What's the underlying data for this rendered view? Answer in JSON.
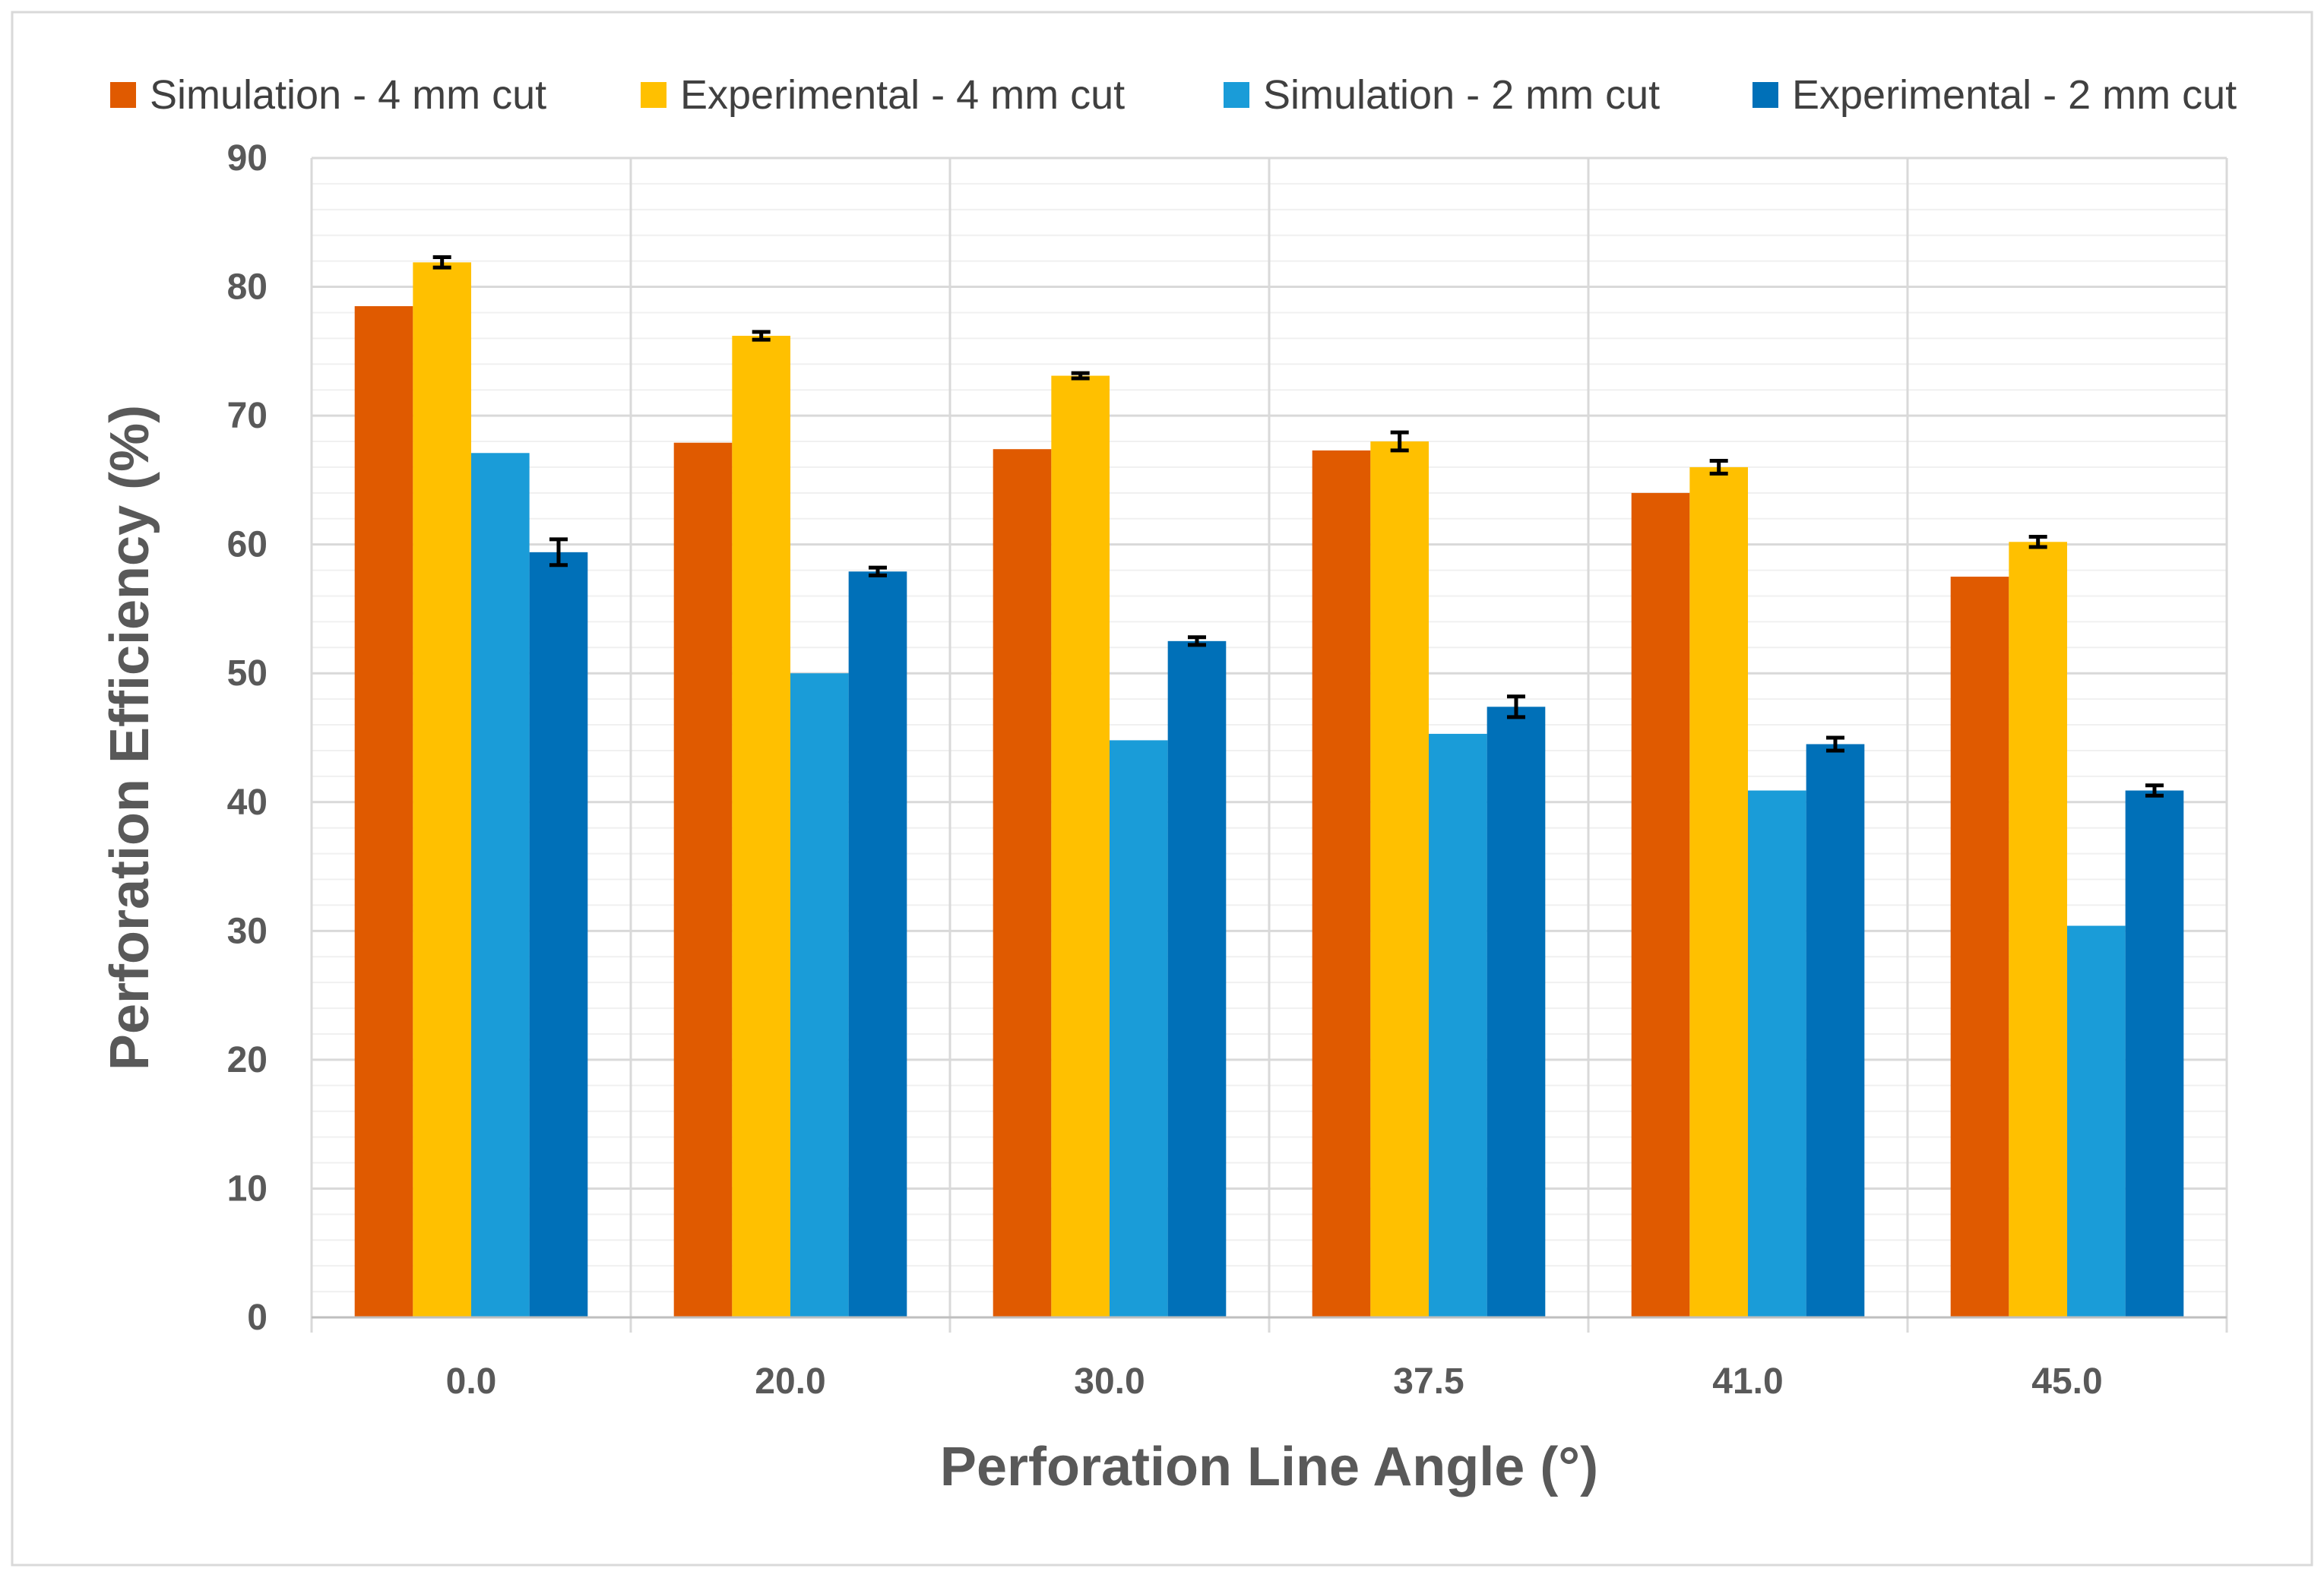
{
  "chart_data": {
    "type": "bar",
    "title": "",
    "xlabel": "Perforation Line Angle (°)",
    "ylabel": "Perforation Efficiency (%)",
    "categories": [
      "0.0",
      "20.0",
      "30.0",
      "37.5",
      "41.0",
      "45.0"
    ],
    "ylim": [
      0,
      90
    ],
    "yticks": [
      "0",
      "10",
      "20",
      "30",
      "40",
      "50",
      "60",
      "70",
      "80",
      "90"
    ],
    "grid": true,
    "minor_grid": true,
    "legend_position": "top",
    "series": [
      {
        "name": "Simulation - 4 mm cut",
        "color": "#E05A00",
        "values": [
          78.5,
          67.9,
          67.4,
          67.3,
          64.0,
          57.5
        ],
        "errors": null
      },
      {
        "name": "Experimental - 4 mm cut",
        "color": "#FFC000",
        "values": [
          81.9,
          76.2,
          73.1,
          68.0,
          66.0,
          60.2
        ],
        "errors": [
          0.4,
          0.3,
          0.2,
          0.7,
          0.5,
          0.4
        ]
      },
      {
        "name": "Simulation - 2 mm cut",
        "color": "#1A9CD8",
        "values": [
          67.1,
          50.0,
          44.8,
          45.3,
          40.9,
          30.4
        ],
        "errors": null
      },
      {
        "name": "Experimental - 2 mm cut",
        "color": "#0070B8",
        "values": [
          59.4,
          57.9,
          52.5,
          47.4,
          44.5,
          40.9
        ],
        "errors": [
          1.0,
          0.3,
          0.3,
          0.8,
          0.5,
          0.4
        ]
      }
    ]
  }
}
